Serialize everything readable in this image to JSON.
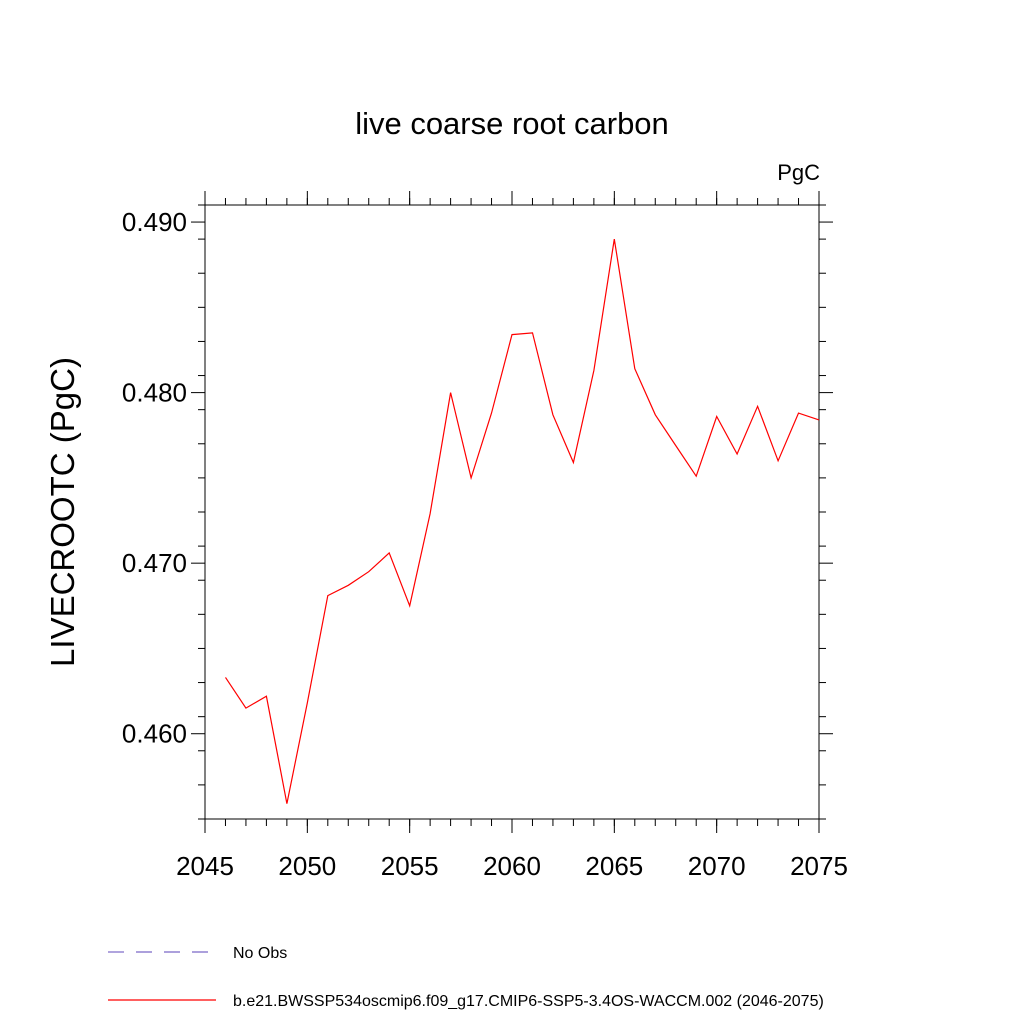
{
  "chart_data": {
    "type": "line",
    "title": "live coarse root carbon",
    "units_label": "PgC",
    "xlabel": "",
    "ylabel": "LIVECROOTC  (PgC)",
    "xlim": [
      2045,
      2075
    ],
    "ylim": [
      0.455,
      0.491
    ],
    "x_ticks": [
      2045,
      2050,
      2055,
      2060,
      2065,
      2070,
      2075
    ],
    "y_ticks": [
      0.46,
      0.47,
      0.48,
      0.49
    ],
    "y_tick_labels": [
      "0.460",
      "0.470",
      "0.480",
      "0.490"
    ],
    "x_minor_step": 1,
    "y_minor_step": 0.002,
    "grid": false,
    "legend_position": "bottom-left",
    "series": [
      {
        "name": "No Obs",
        "color": "#7b68c8",
        "style": "dashed",
        "x": [],
        "values": []
      },
      {
        "name": "b.e21.BWSSP534oscmip6.f09_g17.CMIP6-SSP5-3.4OS-WACCM.002 (2046-2075)",
        "color": "#ff0000",
        "style": "solid",
        "x": [
          2046,
          2047,
          2048,
          2049,
          2050,
          2051,
          2052,
          2053,
          2054,
          2055,
          2056,
          2057,
          2058,
          2059,
          2060,
          2061,
          2062,
          2063,
          2064,
          2065,
          2066,
          2067,
          2068,
          2069,
          2070,
          2071,
          2072,
          2073,
          2074,
          2075
        ],
        "values": [
          0.4633,
          0.4615,
          0.4622,
          0.4559,
          0.4618,
          0.4681,
          0.4687,
          0.4695,
          0.4706,
          0.4675,
          0.4729,
          0.48,
          0.475,
          0.4788,
          0.4834,
          0.4835,
          0.4787,
          0.4759,
          0.4813,
          0.489,
          0.4814,
          0.4787,
          0.4769,
          0.4751,
          0.4786,
          0.4764,
          0.4792,
          0.476,
          0.4788,
          0.4784
        ]
      }
    ]
  }
}
